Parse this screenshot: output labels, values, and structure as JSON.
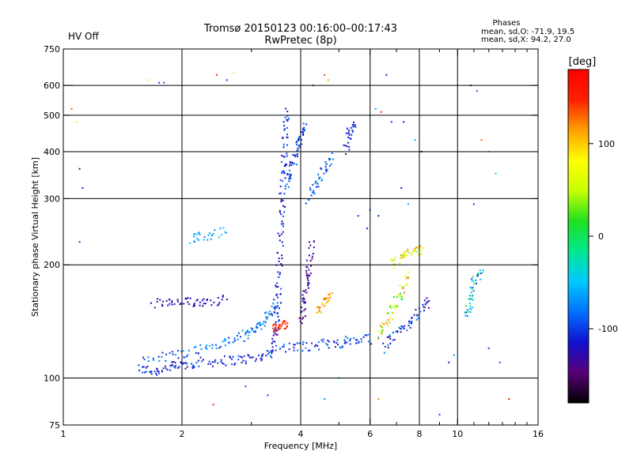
{
  "header": {
    "title_line1": "Tromsø 20150123 00:16:00–00:17:43",
    "title_line2": "RwPretec (8p)",
    "status": "HV Off",
    "status_color": "#cc0000",
    "phase_heading": "Phases",
    "phase_line1": "mean, sd,O: -71.9, 19.5",
    "phase_line2": "mean, sd,X:  94.2, 27.0"
  },
  "chart_data": {
    "type": "scatter",
    "title": "Tromsø 20150123 00:16:00–00:17:43",
    "xlabel": "Frequency [MHz]",
    "ylabel": "Stationary phase Virtual Height [km]",
    "xscale": "log",
    "yscale": "log",
    "xlim": [
      1,
      16
    ],
    "ylim": [
      75,
      750
    ],
    "x_ticks": [
      1,
      2,
      4,
      6,
      8,
      10,
      16
    ],
    "x_minor_ticks": [
      3,
      5,
      7,
      9,
      11,
      12,
      13,
      14,
      15
    ],
    "x_grid": [
      2,
      4,
      6,
      8,
      10
    ],
    "y_ticks": [
      75,
      100,
      200,
      300,
      400,
      500,
      600,
      750
    ],
    "y_grid": [
      100,
      200,
      300,
      400,
      500,
      600
    ],
    "colorbar": {
      "label": "[deg]",
      "ticks": [
        100,
        0,
        -100
      ],
      "range": [
        -180,
        180
      ],
      "colors": [
        "#000000",
        "#5a0078",
        "#1010d0",
        "#0070ff",
        "#00c8ff",
        "#00e890",
        "#20e020",
        "#c8ff00",
        "#ffff00",
        "#ffa000",
        "#ff2000",
        "#ff0000"
      ]
    },
    "series": [
      {
        "trace": [
          [
            1.55,
            106
          ],
          [
            1.7,
            104
          ],
          [
            1.85,
            107
          ],
          [
            2.0,
            108
          ],
          [
            2.2,
            110
          ],
          [
            2.5,
            111
          ],
          [
            2.8,
            112
          ],
          [
            3.1,
            113
          ],
          [
            3.4,
            117
          ],
          [
            3.45,
            130
          ],
          [
            3.5,
            150
          ],
          [
            3.52,
            180
          ],
          [
            3.55,
            220
          ],
          [
            3.58,
            270
          ],
          [
            3.6,
            320
          ],
          [
            3.63,
            380
          ],
          [
            3.66,
            450
          ],
          [
            3.7,
            520
          ]
        ],
        "phase": -110,
        "spread": 25
      },
      {
        "trace": [
          [
            1.6,
            112
          ],
          [
            1.9,
            115
          ],
          [
            2.2,
            119
          ],
          [
            2.5,
            123
          ],
          [
            2.8,
            128
          ],
          [
            3.0,
            133
          ],
          [
            3.2,
            140
          ],
          [
            3.35,
            148
          ],
          [
            3.45,
            160
          ]
        ],
        "phase": -80,
        "spread": 30
      },
      {
        "trace": [
          [
            1.7,
            158
          ],
          [
            1.9,
            158
          ],
          [
            2.1,
            159
          ],
          [
            2.3,
            160
          ],
          [
            2.6,
            162
          ]
        ],
        "phase": -125,
        "spread": 10
      },
      {
        "trace": [
          [
            2.1,
            235
          ],
          [
            2.3,
            240
          ],
          [
            2.6,
            245
          ]
        ],
        "phase": -60,
        "spread": 15
      },
      {
        "trace": [
          [
            3.7,
            330
          ],
          [
            3.8,
            360
          ],
          [
            3.9,
            400
          ],
          [
            4.0,
            430
          ],
          [
            4.1,
            470
          ]
        ],
        "phase": -100,
        "spread": 25
      },
      {
        "trace": [
          [
            4.2,
            300
          ],
          [
            4.4,
            330
          ],
          [
            4.6,
            360
          ],
          [
            4.8,
            390
          ]
        ],
        "phase": -85,
        "spread": 25
      },
      {
        "trace": [
          [
            3.5,
            120
          ],
          [
            4.0,
            121
          ],
          [
            4.5,
            123
          ],
          [
            5.0,
            124
          ],
          [
            5.5,
            126
          ],
          [
            6.0,
            127
          ]
        ],
        "phase": -95,
        "spread": 25
      },
      {
        "trace": [
          [
            3.4,
            135
          ],
          [
            3.55,
            138
          ],
          [
            3.7,
            140
          ]
        ],
        "phase": 150,
        "spread": 15
      },
      {
        "trace": [
          [
            4.0,
            140
          ],
          [
            4.1,
            160
          ],
          [
            4.15,
            180
          ],
          [
            4.2,
            200
          ],
          [
            4.3,
            230
          ]
        ],
        "phase": -135,
        "spread": 15
      },
      {
        "trace": [
          [
            4.4,
            150
          ],
          [
            4.6,
            160
          ],
          [
            4.8,
            165
          ]
        ],
        "phase": 110,
        "spread": 25
      },
      {
        "trace": [
          [
            6.3,
            130
          ],
          [
            6.6,
            140
          ],
          [
            6.9,
            155
          ],
          [
            7.2,
            170
          ],
          [
            7.5,
            190
          ]
        ],
        "phase": 60,
        "spread": 70
      },
      {
        "trace": [
          [
            6.5,
            120
          ],
          [
            7.0,
            130
          ],
          [
            7.5,
            140
          ],
          [
            8.0,
            150
          ],
          [
            8.5,
            160
          ]
        ],
        "phase": -110,
        "spread": 40
      },
      {
        "trace": [
          [
            6.8,
            200
          ],
          [
            7.2,
            210
          ],
          [
            7.6,
            215
          ],
          [
            8.2,
            220
          ]
        ],
        "phase": 80,
        "spread": 50
      },
      {
        "trace": [
          [
            10.5,
            145
          ],
          [
            10.8,
            160
          ],
          [
            11.0,
            180
          ],
          [
            11.5,
            190
          ]
        ],
        "phase": -50,
        "spread": 60
      },
      {
        "trace": [
          [
            5.2,
            400
          ],
          [
            5.3,
            450
          ],
          [
            5.5,
            470
          ]
        ],
        "phase": -110,
        "spread": 20
      }
    ],
    "scatter_points": [
      [
        1.1,
        230,
        -100
      ],
      [
        1.12,
        320,
        -110
      ],
      [
        1.1,
        360,
        -120
      ],
      [
        1.05,
        600,
        120
      ],
      [
        1.05,
        520,
        130
      ],
      [
        1.08,
        480,
        90
      ],
      [
        1.65,
        620,
        90
      ],
      [
        1.75,
        610,
        -100
      ],
      [
        1.8,
        610,
        -90
      ],
      [
        2.45,
        640,
        150
      ],
      [
        2.6,
        620,
        -100
      ],
      [
        2.7,
        650,
        80
      ],
      [
        4.3,
        600,
        -80
      ],
      [
        4.6,
        640,
        140
      ],
      [
        4.7,
        620,
        110
      ],
      [
        6.2,
        520,
        -60
      ],
      [
        6.4,
        510,
        150
      ],
      [
        6.6,
        640,
        -110
      ],
      [
        6.8,
        480,
        -100
      ],
      [
        7.3,
        480,
        -110
      ],
      [
        7.8,
        430,
        -60
      ],
      [
        8.1,
        400,
        -130
      ],
      [
        10.8,
        600,
        -100
      ],
      [
        11.2,
        580,
        -90
      ],
      [
        11.5,
        430,
        130
      ],
      [
        12.0,
        400,
        120
      ],
      [
        12.5,
        350,
        -40
      ],
      [
        11.0,
        290,
        -100
      ],
      [
        6.0,
        280,
        -80
      ],
      [
        6.3,
        270,
        -110
      ],
      [
        5.6,
        270,
        -100
      ],
      [
        5.9,
        250,
        -110
      ],
      [
        7.2,
        320,
        -120
      ],
      [
        7.5,
        290,
        -60
      ],
      [
        2.4,
        85,
        150
      ],
      [
        2.9,
        95,
        -90
      ],
      [
        3.3,
        90,
        -100
      ],
      [
        4.6,
        88,
        -70
      ],
      [
        6.3,
        88,
        120
      ],
      [
        9.0,
        80,
        -100
      ],
      [
        13.5,
        88,
        160
      ],
      [
        12.0,
        120,
        -100
      ],
      [
        12.8,
        110,
        -90
      ],
      [
        9.5,
        110,
        -110
      ],
      [
        9.8,
        115,
        -60
      ],
      [
        5.0,
        100,
        -50
      ]
    ],
    "grid": true
  }
}
